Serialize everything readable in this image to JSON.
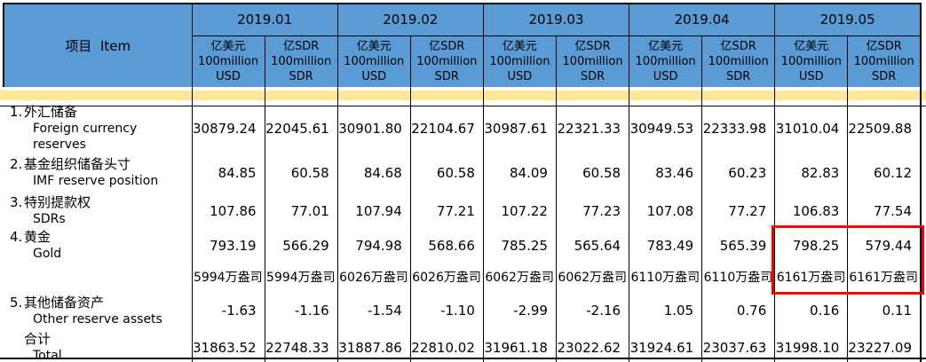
{
  "table": {
    "item_header": "项目  Item",
    "months": [
      "2019.01",
      "2019.02",
      "2019.03",
      "2019.04",
      "2019.05"
    ],
    "units": [
      {
        "cn": "亿美元",
        "mid": "100million",
        "bottom": "USD"
      },
      {
        "cn": "亿SDR",
        "mid": "100million",
        "bottom": "SDR"
      }
    ],
    "rows": [
      {
        "no": "1.",
        "cn": "外汇储备",
        "en": "Foreign currency reserves",
        "values": [
          "30879.24",
          "22045.61",
          "30901.80",
          "22104.67",
          "30987.61",
          "22321.33",
          "30949.53",
          "22333.98",
          "31010.04",
          "22509.88"
        ]
      },
      {
        "no": "2.",
        "cn": "基金组织储备头寸",
        "en": "IMF reserve position",
        "values": [
          "84.85",
          "60.58",
          "84.68",
          "60.58",
          "84.09",
          "60.58",
          "83.46",
          "60.23",
          "82.83",
          "60.12"
        ]
      },
      {
        "no": "3.",
        "cn": "特别提款权",
        "en": "SDRs",
        "values": [
          "107.86",
          "77.01",
          "107.94",
          "77.21",
          "107.22",
          "77.23",
          "107.08",
          "77.27",
          "106.83",
          "77.54"
        ]
      },
      {
        "no": "4.",
        "cn": "黄金",
        "en": "Gold",
        "values": [
          "793.19",
          "566.29",
          "794.98",
          "568.66",
          "785.25",
          "565.64",
          "783.49",
          "565.39",
          "798.25",
          "579.44"
        ],
        "sub_values": [
          "5994万盎司",
          "5994万盎司",
          "6026万盎司",
          "6026万盎司",
          "6062万盎司",
          "6062万盎司",
          "6110万盎司",
          "6110万盎司",
          "6161万盎司",
          "6161万盎司"
        ]
      },
      {
        "no": "5.",
        "cn": "其他储备资产",
        "en": "Other reserve assets",
        "values": [
          "-1.63",
          "-1.16",
          "-1.54",
          "-1.10",
          "-2.99",
          "-2.16",
          "1.05",
          "0.76",
          "0.16",
          "0.11"
        ]
      },
      {
        "no": "",
        "cn": "合计",
        "en": "Total",
        "values": [
          "31863.52",
          "22748.33",
          "31887.86",
          "22810.02",
          "31961.18",
          "23022.62",
          "31924.61",
          "23037.63",
          "31998.10",
          "23227.09"
        ]
      }
    ],
    "highlight": {
      "start_cell": "r3-c8",
      "end_cell": "r3s-c9",
      "color": "#F20000"
    },
    "colors": {
      "header_blue": "#5B9BD5",
      "band_yellow": "#FFE699",
      "border": "#000000",
      "highlight_red": "#F20000"
    }
  }
}
